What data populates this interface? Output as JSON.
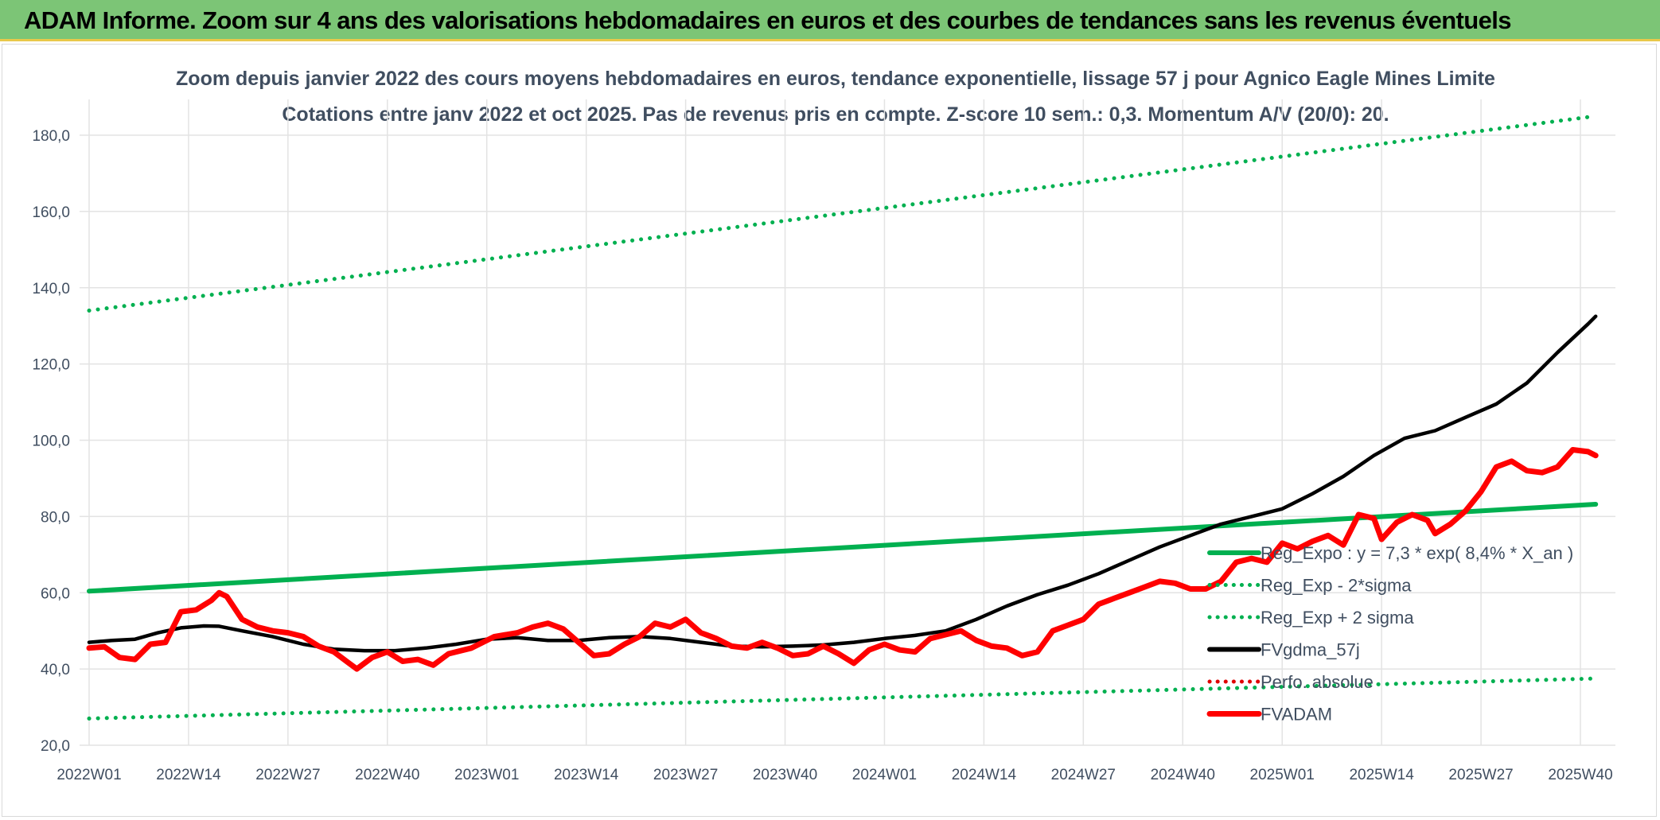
{
  "header": {
    "title": "ADAM Informe. Zoom sur 4 ans des valorisations hebdomadaires en euros et des courbes de tendances sans les revenus éventuels"
  },
  "chart_data": {
    "type": "line",
    "title": "Zoom depuis janvier 2022 des cours moyens hebdomadaires en euros, tendance exponentielle, lissage 57 j pour Agnico Eagle Mines Limite",
    "subtitle": "Cotations entre janv 2022 et oct 2025. Pas de revenus pris en compte. Z-score 10 sem.: 0,3. Momentum A/V (20/0): 20.",
    "xlabel": "",
    "ylabel": "",
    "ylim": [
      20,
      190
    ],
    "y_ticks": [
      "20,0",
      "40,0",
      "60,0",
      "80,0",
      "100,0",
      "120,0",
      "140,0",
      "160,0",
      "180,0"
    ],
    "x_tick_labels": [
      "2022W01",
      "2022W14",
      "2022W27",
      "2022W40",
      "2023W01",
      "2023W14",
      "2023W27",
      "2023W40",
      "2024W01",
      "2024W14",
      "2024W27",
      "2024W40",
      "2025W01",
      "2025W14",
      "2025W27",
      "2025W40"
    ],
    "x_tick_weeks": [
      0,
      13,
      26,
      39,
      52,
      65,
      78,
      91,
      104,
      117,
      130,
      143,
      156,
      169,
      182,
      195
    ],
    "last_week": 197,
    "grid": true,
    "legend_position": "bottom-right",
    "series": [
      {
        "name": "Reg_Expo : y = 7,3 * exp( 8,4% *  X_an )",
        "color": "#00b050",
        "style": "solid",
        "points": [
          [
            0,
            60.4
          ],
          [
            197,
            83.2
          ]
        ]
      },
      {
        "name": "Reg_Exp - 2*sigma",
        "color": "#00b050",
        "style": "dotted",
        "points": [
          [
            0,
            27.0
          ],
          [
            197,
            37.5
          ]
        ]
      },
      {
        "name": "Reg_Exp + 2 sigma",
        "color": "#00b050",
        "style": "dotted",
        "points": [
          [
            0,
            134.0
          ],
          [
            197,
            185.0
          ]
        ]
      },
      {
        "name": "FVgdma_57j",
        "color": "#000000",
        "style": "solid",
        "points": [
          [
            0,
            47.0
          ],
          [
            3,
            47.5
          ],
          [
            6,
            47.8
          ],
          [
            9,
            49.5
          ],
          [
            12,
            50.8
          ],
          [
            15,
            51.3
          ],
          [
            17,
            51.2
          ],
          [
            20,
            50.0
          ],
          [
            24,
            48.5
          ],
          [
            28,
            46.5
          ],
          [
            32,
            45.2
          ],
          [
            36,
            44.8
          ],
          [
            40,
            44.8
          ],
          [
            44,
            45.5
          ],
          [
            48,
            46.5
          ],
          [
            52,
            47.8
          ],
          [
            56,
            48.2
          ],
          [
            60,
            47.5
          ],
          [
            64,
            47.5
          ],
          [
            68,
            48.2
          ],
          [
            72,
            48.5
          ],
          [
            76,
            48.0
          ],
          [
            80,
            47.0
          ],
          [
            84,
            46.0
          ],
          [
            88,
            45.8
          ],
          [
            92,
            46.0
          ],
          [
            96,
            46.3
          ],
          [
            100,
            47.0
          ],
          [
            104,
            48.0
          ],
          [
            108,
            48.8
          ],
          [
            112,
            50.0
          ],
          [
            116,
            53.0
          ],
          [
            120,
            56.5
          ],
          [
            124,
            59.5
          ],
          [
            128,
            62.0
          ],
          [
            132,
            65.0
          ],
          [
            136,
            68.5
          ],
          [
            140,
            72.0
          ],
          [
            144,
            75.0
          ],
          [
            148,
            78.0
          ],
          [
            152,
            80.0
          ],
          [
            156,
            82.0
          ],
          [
            160,
            86.0
          ],
          [
            164,
            90.5
          ],
          [
            168,
            96.0
          ],
          [
            172,
            100.5
          ],
          [
            176,
            102.5
          ],
          [
            180,
            106.0
          ],
          [
            184,
            109.5
          ],
          [
            188,
            115.0
          ],
          [
            192,
            123.0
          ],
          [
            196,
            130.5
          ],
          [
            197,
            132.5
          ]
        ]
      },
      {
        "name": "Perfo. absolue",
        "color": "#e00000",
        "style": "dotted",
        "points": []
      },
      {
        "name": "FVADAM",
        "color": "#ff0000",
        "style": "solid-thick",
        "points": [
          [
            0,
            45.5
          ],
          [
            2,
            45.8
          ],
          [
            4,
            43.0
          ],
          [
            6,
            42.5
          ],
          [
            8,
            46.5
          ],
          [
            10,
            47.0
          ],
          [
            12,
            55.0
          ],
          [
            14,
            55.5
          ],
          [
            16,
            58.0
          ],
          [
            17,
            60.0
          ],
          [
            18,
            59.0
          ],
          [
            20,
            53.0
          ],
          [
            22,
            51.0
          ],
          [
            24,
            50.0
          ],
          [
            26,
            49.5
          ],
          [
            28,
            48.5
          ],
          [
            30,
            46.0
          ],
          [
            32,
            44.5
          ],
          [
            34,
            41.5
          ],
          [
            35,
            40.0
          ],
          [
            37,
            43.0
          ],
          [
            39,
            44.5
          ],
          [
            41,
            42.0
          ],
          [
            43,
            42.5
          ],
          [
            45,
            41.0
          ],
          [
            47,
            44.0
          ],
          [
            50,
            45.5
          ],
          [
            53,
            48.5
          ],
          [
            56,
            49.5
          ],
          [
            58,
            51.0
          ],
          [
            60,
            52.0
          ],
          [
            62,
            50.5
          ],
          [
            64,
            47.0
          ],
          [
            66,
            43.5
          ],
          [
            68,
            44.0
          ],
          [
            70,
            46.5
          ],
          [
            72,
            48.5
          ],
          [
            74,
            52.0
          ],
          [
            76,
            51.0
          ],
          [
            78,
            53.0
          ],
          [
            80,
            49.5
          ],
          [
            82,
            48.0
          ],
          [
            84,
            46.0
          ],
          [
            86,
            45.5
          ],
          [
            88,
            47.0
          ],
          [
            90,
            45.5
          ],
          [
            92,
            43.5
          ],
          [
            94,
            44.0
          ],
          [
            96,
            46.0
          ],
          [
            98,
            44.0
          ],
          [
            100,
            41.5
          ],
          [
            102,
            45.0
          ],
          [
            104,
            46.5
          ],
          [
            106,
            45.0
          ],
          [
            108,
            44.5
          ],
          [
            110,
            48.0
          ],
          [
            112,
            49.0
          ],
          [
            114,
            50.0
          ],
          [
            116,
            47.5
          ],
          [
            118,
            46.0
          ],
          [
            120,
            45.5
          ],
          [
            122,
            43.5
          ],
          [
            124,
            44.5
          ],
          [
            126,
            50.0
          ],
          [
            128,
            51.5
          ],
          [
            130,
            53.0
          ],
          [
            132,
            57.0
          ],
          [
            134,
            58.5
          ],
          [
            136,
            60.0
          ],
          [
            138,
            61.5
          ],
          [
            140,
            63.0
          ],
          [
            142,
            62.5
          ],
          [
            144,
            61.0
          ],
          [
            146,
            61.0
          ],
          [
            148,
            63.0
          ],
          [
            150,
            68.0
          ],
          [
            152,
            69.0
          ],
          [
            154,
            68.0
          ],
          [
            156,
            73.0
          ],
          [
            158,
            71.5
          ],
          [
            160,
            73.5
          ],
          [
            162,
            75.0
          ],
          [
            164,
            72.5
          ],
          [
            166,
            80.5
          ],
          [
            168,
            79.5
          ],
          [
            169,
            74.0
          ],
          [
            171,
            78.5
          ],
          [
            173,
            80.5
          ],
          [
            175,
            79.0
          ],
          [
            176,
            75.5
          ],
          [
            178,
            78.0
          ],
          [
            180,
            81.5
          ],
          [
            182,
            86.5
          ],
          [
            184,
            93.0
          ],
          [
            186,
            94.5
          ],
          [
            188,
            92.0
          ],
          [
            190,
            91.5
          ],
          [
            192,
            93.0
          ],
          [
            194,
            97.5
          ],
          [
            196,
            97.0
          ],
          [
            197,
            96.0
          ]
        ]
      }
    ]
  }
}
